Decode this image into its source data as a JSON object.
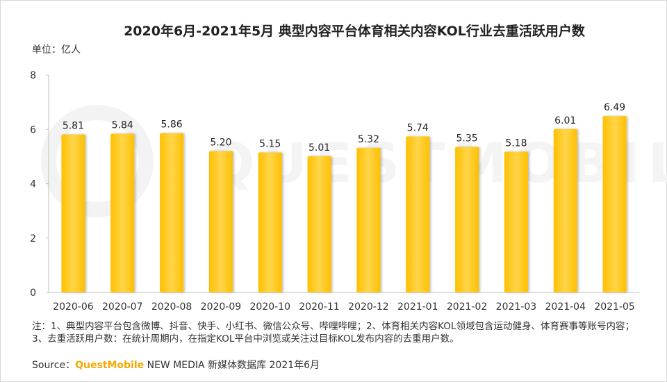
{
  "title": "2020年6月-2021年5月 典型内容平台体育相关内容KOL行业去重活跃用户数",
  "unit_label": "单位：亿人",
  "watermark": "QUESTMOBILE",
  "note": "注：1、典型内容平台包含微博、抖音、快手、小红书、微信公众号、哔哩哔哩；2、体育相关内容KOL领域包含运动健身、体育赛事等账号内容；3、去重活跃用户数：在统计周期内，在指定KOL平台中浏览或关注过目标KOL发布内容的去重用户数。",
  "source": {
    "prefix": "Source：",
    "brand": "QuestMobile",
    "suffix": " NEW MEDIA 新媒体数据库 2021年6月"
  },
  "colors": {
    "bar": "#ffc000",
    "bar_light": "#ffd54a",
    "axis": "#bfbfbf"
  },
  "chart_data": {
    "type": "bar",
    "title": "2020年6月-2021年5月 典型内容平台体育相关内容KOL行业去重活跃用户数",
    "ylabel": "单位：亿人",
    "xlabel": "",
    "ylim": [
      0,
      8
    ],
    "yticks": [
      0,
      2,
      4,
      6,
      8
    ],
    "grid": false,
    "categories": [
      "2020-06",
      "2020-07",
      "2020-08",
      "2020-09",
      "2020-10",
      "2020-11",
      "2020-12",
      "2021-01",
      "2021-02",
      "2021-03",
      "2021-04",
      "2021-05"
    ],
    "values": [
      5.81,
      5.84,
      5.86,
      5.2,
      5.15,
      5.01,
      5.32,
      5.74,
      5.35,
      5.18,
      6.01,
      6.49
    ],
    "value_labels": [
      "5.81",
      "5.84",
      "5.86",
      "5.20",
      "5.15",
      "5.01",
      "5.32",
      "5.74",
      "5.35",
      "5.18",
      "6.01",
      "6.49"
    ]
  }
}
